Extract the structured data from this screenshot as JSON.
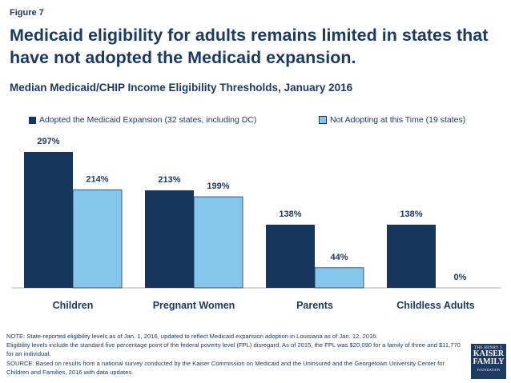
{
  "figure_label": "Figure 7",
  "title": "Medicaid eligibility for adults remains limited in states that have not adopted the Medicaid expansion.",
  "subtitle": "Median Medicaid/CHIP Income Eligibility Thresholds, January 2016",
  "colors": {
    "dark": "#17365d",
    "light": "#84c6ec",
    "text": "#1d3a63",
    "axis": "#b0b0b0"
  },
  "chart_data": {
    "type": "bar",
    "title": "Median Medicaid/CHIP Income Eligibility Thresholds, January 2016",
    "categories": [
      "Children",
      "Pregnant Women",
      "Parents",
      "Childless Adults"
    ],
    "series": [
      {
        "name": "Adopted the Medicaid Expansion (32 states, including DC)",
        "values": [
          297,
          213,
          138,
          138
        ],
        "labels": [
          "297%",
          "213%",
          "138%",
          "138%"
        ]
      },
      {
        "name": "Not Adopting at this Time (19 states)",
        "values": [
          214,
          199,
          44,
          0
        ],
        "labels": [
          "214%",
          "199%",
          "44%",
          "0%"
        ]
      }
    ],
    "ylim": [
      0,
      297
    ],
    "legend": "top",
    "grid": false
  },
  "notes": [
    "NOTE: State-reported eligibility levels as of Jan. 1, 2016, updated to reflect Medicaid expansion adoption in Louisiana as of Jan. 12, 2016.",
    "Eligibility levels include the standard five percentage point of the federal poverty level (FPL) disregard. As of 2015, the FPL was $20,090 for a family of three and $11,770 for an individual.",
    "SOURCE: Based on results from a national survey conducted by the Kaiser Commission on Medicaid and the Uninsured and the Georgetown University Center for Children and Families, 2016 with data updates."
  ],
  "logo": {
    "line1": "THE HENRY J.",
    "line2": "KAISER",
    "line3": "FAMILY",
    "line4": "FOUNDATION"
  }
}
